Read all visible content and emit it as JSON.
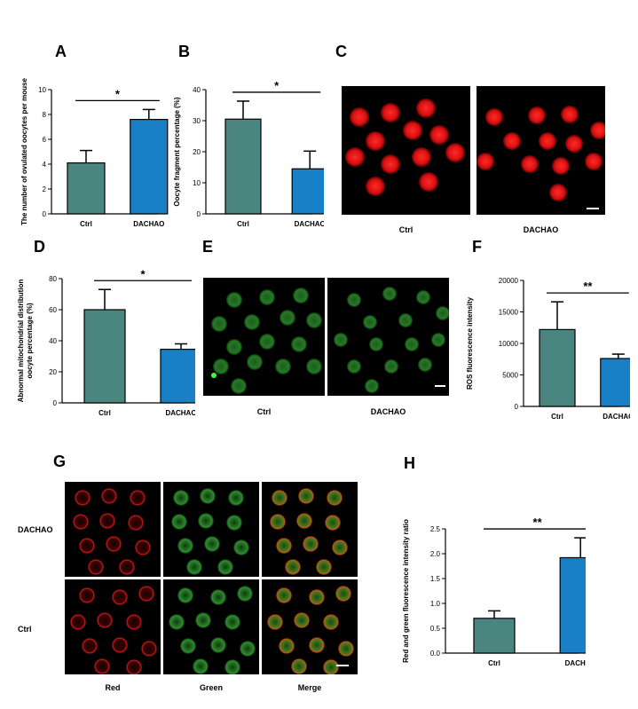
{
  "panels": {
    "A": "A",
    "B": "B",
    "C": "C",
    "D": "D",
    "E": "E",
    "F": "F",
    "G": "G",
    "H": "H"
  },
  "colors": {
    "ctrl": "#4a8580",
    "dachao": "#1a80c6"
  },
  "chart_data": [
    {
      "panel": "A",
      "type": "bar",
      "categories": [
        "Ctrl",
        "DACHAO"
      ],
      "values": [
        4.1,
        7.6
      ],
      "errors": [
        1.0,
        0.8
      ],
      "ylabel": "The number of ovulated oocytes per mouse",
      "ylim": [
        0,
        10
      ],
      "yticks": [
        0,
        2,
        4,
        6,
        8,
        10
      ],
      "significance": "*"
    },
    {
      "panel": "B",
      "type": "bar",
      "categories": [
        "Ctrl",
        "DACHAO"
      ],
      "values": [
        30.5,
        14.5
      ],
      "errors": [
        5.8,
        5.7
      ],
      "ylabel": "Oocyte fragment percentage (%)",
      "ylim": [
        0,
        40
      ],
      "yticks": [
        0,
        10,
        20,
        30,
        40
      ],
      "significance": "*"
    },
    {
      "panel": "D",
      "type": "bar",
      "categories": [
        "Ctrl",
        "DACHAO"
      ],
      "values": [
        60,
        34.5
      ],
      "errors": [
        13,
        3.5
      ],
      "ylabel": "Abnormal mitochondrial distribution oocyte percentage (%)",
      "ylabel_lines": [
        "Abnormal mitochondrial distribution",
        "oocyte percentage (%)"
      ],
      "ylim": [
        0,
        80
      ],
      "yticks": [
        0,
        20,
        40,
        60,
        80
      ],
      "significance": "*"
    },
    {
      "panel": "F",
      "type": "bar",
      "categories": [
        "Ctrl",
        "DACHAO"
      ],
      "values": [
        12200,
        7600
      ],
      "errors": [
        4400,
        700
      ],
      "ylabel": "ROS fluorescence intensity",
      "ylim": [
        0,
        20000
      ],
      "yticks": [
        0,
        5000,
        10000,
        15000,
        20000
      ],
      "significance": "**"
    },
    {
      "panel": "H",
      "type": "bar",
      "categories": [
        "Ctrl",
        "DACHAO"
      ],
      "values": [
        0.7,
        1.92
      ],
      "errors": [
        0.15,
        0.4
      ],
      "ylabel": "Red and green fluorescence intensity ratio",
      "ylim": [
        0,
        2.5
      ],
      "yticks": [
        "0.0",
        "0.5",
        "1.0",
        "1.5",
        "2.0",
        "2.5"
      ],
      "significance": "**"
    }
  ],
  "images": {
    "C": {
      "captions": [
        "Ctrl",
        "DACHAO"
      ]
    },
    "E": {
      "captions": [
        "Ctrl",
        "DACHAO"
      ]
    },
    "G": {
      "row_labels": [
        "DACHAO",
        "Ctrl"
      ],
      "col_labels": [
        "Red",
        "Green",
        "Merge"
      ]
    }
  }
}
